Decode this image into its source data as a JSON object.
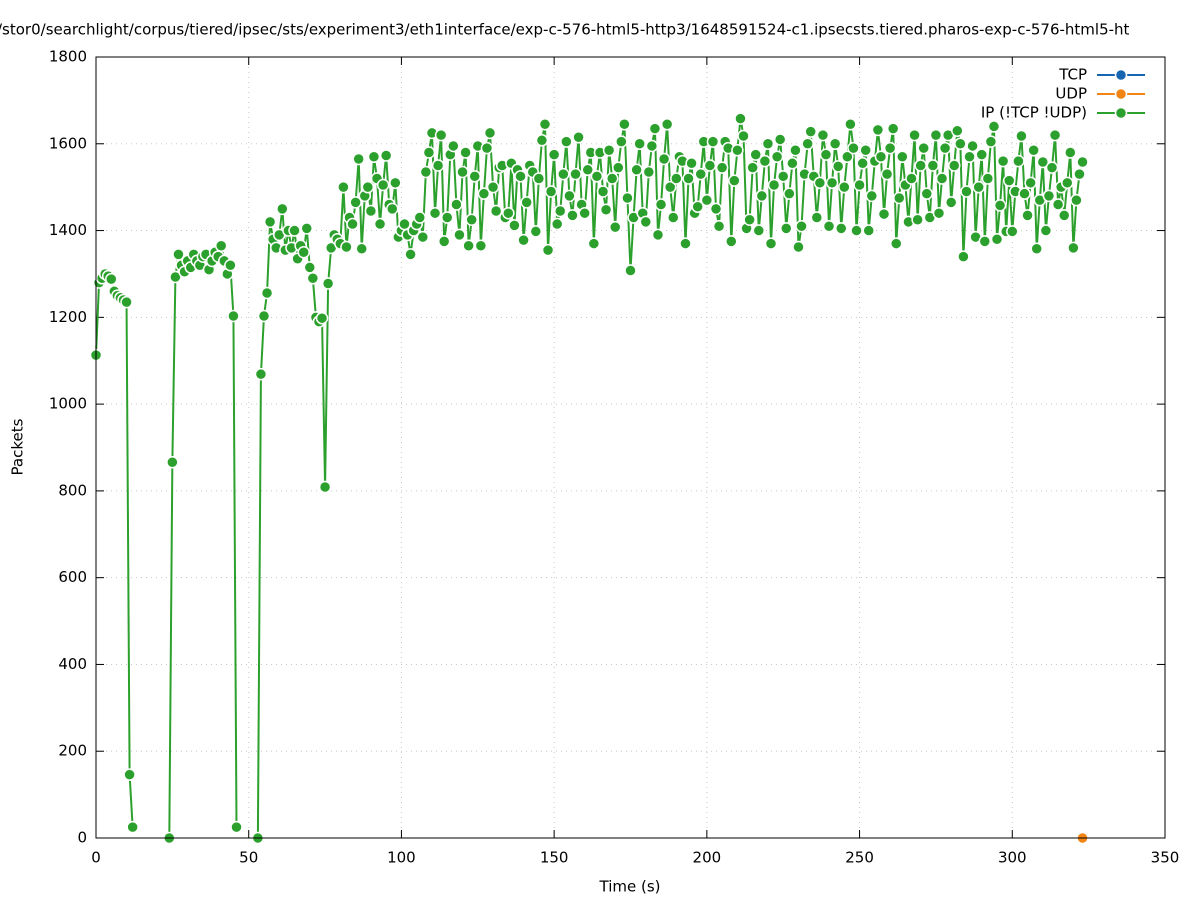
{
  "chart_data": {
    "type": "line",
    "title": "/stor0/searchlight/corpus/tiered/ipsec/sts/experiment3/eth1interface/exp-c-576-html5-http3/1648591524-c1.ipsecsts.tiered.pharos-exp-c-576-html5-ht",
    "x_label": "Time (s)",
    "y_label": "Packets",
    "xlim": [
      0,
      350
    ],
    "xticks": [
      0,
      50,
      100,
      150,
      200,
      250,
      300,
      350
    ],
    "ylim": [
      0,
      1800
    ],
    "yticks": [
      0,
      200,
      400,
      600,
      800,
      1000,
      1200,
      1400,
      1600,
      1800
    ],
    "grid": true,
    "legend": "top right",
    "series": [
      {
        "name": "TCP",
        "color": "#1565b0",
        "x": [],
        "values": []
      },
      {
        "name": "UDP",
        "color": "#f28413",
        "x": [
          323
        ],
        "values": [
          0
        ]
      },
      {
        "name": "IP (!TCP  !UDP)",
        "color": "#2ca02c",
        "x": [
          0,
          1,
          2,
          3,
          4,
          5,
          6,
          7,
          8,
          9,
          10,
          11,
          12,
          13,
          14,
          15,
          16,
          17,
          18,
          19,
          20,
          21,
          22,
          23,
          24,
          25,
          26,
          27,
          28,
          29,
          30,
          31,
          32,
          33,
          34,
          35,
          36,
          37,
          38,
          39,
          40,
          41,
          42,
          43,
          44,
          45,
          46,
          47,
          48,
          49,
          50,
          51,
          52,
          53,
          54,
          55,
          56,
          57,
          58,
          59,
          60,
          61,
          62,
          63,
          64,
          65,
          66,
          67,
          68,
          69,
          70,
          71,
          72,
          73,
          74,
          75,
          76,
          77,
          78,
          79,
          80,
          81,
          82,
          83,
          84,
          85,
          86,
          87,
          88,
          89,
          90,
          91,
          92,
          93,
          94,
          95,
          96,
          97,
          98,
          99,
          100,
          101,
          102,
          103,
          104,
          105,
          106,
          107,
          108,
          109,
          110,
          111,
          112,
          113,
          114,
          115,
          116,
          117,
          118,
          119,
          120,
          121,
          122,
          123,
          124,
          125,
          126,
          127,
          128,
          129,
          130,
          131,
          132,
          133,
          134,
          135,
          136,
          137,
          138,
          139,
          140,
          141,
          142,
          143,
          144,
          145,
          146,
          147,
          148,
          149,
          150,
          151,
          152,
          153,
          154,
          155,
          156,
          157,
          158,
          159,
          160,
          161,
          162,
          163,
          164,
          165,
          166,
          167,
          168,
          169,
          170,
          171,
          172,
          173,
          174,
          175,
          176,
          177,
          178,
          179,
          180,
          181,
          182,
          183,
          184,
          185,
          186,
          187,
          188,
          189,
          190,
          191,
          192,
          193,
          194,
          195,
          196,
          197,
          198,
          199,
          200,
          201,
          202,
          203,
          204,
          205,
          206,
          207,
          208,
          209,
          210,
          211,
          212,
          213,
          214,
          215,
          216,
          217,
          218,
          219,
          220,
          221,
          222,
          223,
          224,
          225,
          226,
          227,
          228,
          229,
          230,
          231,
          232,
          233,
          234,
          235,
          236,
          237,
          238,
          239,
          240,
          241,
          242,
          243,
          244,
          245,
          246,
          247,
          248,
          249,
          250,
          251,
          252,
          253,
          254,
          255,
          256,
          257,
          258,
          259,
          260,
          261,
          262,
          263,
          264,
          265,
          266,
          267,
          268,
          269,
          270,
          271,
          272,
          273,
          274,
          275,
          276,
          277,
          278,
          279,
          280,
          281,
          282,
          283,
          284,
          285,
          286,
          287,
          288,
          289,
          290,
          291,
          292,
          293,
          294,
          295,
          296,
          297,
          298,
          299,
          300,
          301,
          302,
          303,
          304,
          305,
          306,
          307,
          308,
          309,
          310,
          311,
          312,
          313,
          314,
          315,
          316,
          317,
          318,
          319,
          320,
          321,
          322,
          323
        ],
        "values": [
          1113,
          1280,
          1290,
          1300,
          1295,
          1288,
          1260,
          1250,
          1245,
          1240,
          1235,
          146,
          25,
          null,
          null,
          null,
          null,
          null,
          null,
          null,
          null,
          null,
          null,
          null,
          0,
          866,
          1293,
          1345,
          1320,
          1305,
          1330,
          1315,
          1345,
          1330,
          1320,
          1340,
          1345,
          1310,
          1330,
          1350,
          1340,
          1365,
          1330,
          1300,
          1320,
          1203,
          25,
          null,
          null,
          null,
          null,
          null,
          null,
          0,
          1069,
          1203,
          1256,
          1420,
          1380,
          1360,
          1390,
          1450,
          1355,
          1400,
          1360,
          1400,
          1335,
          1365,
          1350,
          1405,
          1315,
          1290,
          1200,
          1190,
          1198,
          809,
          1278,
          1360,
          1390,
          1380,
          1370,
          1500,
          1362,
          1430,
          1415,
          1465,
          1565,
          1358,
          1480,
          1500,
          1445,
          1570,
          1520,
          1415,
          1505,
          1573,
          1460,
          1450,
          1510,
          1385,
          1400,
          1415,
          1390,
          1345,
          1400,
          1415,
          1430,
          1385,
          1535,
          1580,
          1625,
          1440,
          1550,
          1620,
          1375,
          1430,
          1575,
          1595,
          1460,
          1390,
          1535,
          1580,
          1365,
          1425,
          1525,
          1595,
          1365,
          1485,
          1590,
          1625,
          1500,
          1445,
          1545,
          1550,
          1430,
          1440,
          1555,
          1412,
          1540,
          1525,
          1378,
          1465,
          1550,
          1535,
          1398,
          1520,
          1608,
          1645,
          1355,
          1490,
          1575,
          1415,
          1445,
          1530,
          1605,
          1480,
          1435,
          1530,
          1615,
          1460,
          1440,
          1540,
          1580,
          1370,
          1525,
          1580,
          1490,
          1448,
          1585,
          1520,
          1408,
          1545,
          1605,
          1645,
          1475,
          1308,
          1430,
          1540,
          1600,
          1440,
          1420,
          1535,
          1595,
          1635,
          1390,
          1460,
          1565,
          1645,
          1500,
          1430,
          1520,
          1570,
          1560,
          1370,
          1520,
          1555,
          1440,
          1455,
          1530,
          1605,
          1470,
          1550,
          1605,
          1450,
          1410,
          1545,
          1605,
          1590,
          1375,
          1515,
          1585,
          1658,
          1618,
          1405,
          1425,
          1545,
          1575,
          1400,
          1480,
          1560,
          1600,
          1370,
          1505,
          1570,
          1610,
          1525,
          1405,
          1485,
          1555,
          1585,
          1362,
          1410,
          1530,
          1600,
          1628,
          1525,
          1430,
          1510,
          1620,
          1575,
          1410,
          1510,
          1600,
          1548,
          1405,
          1500,
          1570,
          1645,
          1590,
          1400,
          1505,
          1555,
          1585,
          1400,
          1480,
          1560,
          1632,
          1570,
          1438,
          1530,
          1590,
          1635,
          1370,
          1475,
          1570,
          1505,
          1420,
          1520,
          1620,
          1425,
          1550,
          1590,
          1485,
          1430,
          1550,
          1620,
          1440,
          1520,
          1590,
          1620,
          1465,
          1550,
          1630,
          1600,
          1340,
          1490,
          1570,
          1595,
          1385,
          1500,
          1575,
          1375,
          1520,
          1605,
          1640,
          1380,
          1458,
          1560,
          1398,
          1515,
          1398,
          1490,
          1560,
          1618,
          1485,
          1435,
          1510,
          1585,
          1358,
          1470,
          1558,
          1400,
          1480,
          1545,
          1620,
          1460,
          1500,
          1435,
          1510,
          1580,
          1360,
          1470,
          1530,
          1558
        ]
      }
    ]
  }
}
